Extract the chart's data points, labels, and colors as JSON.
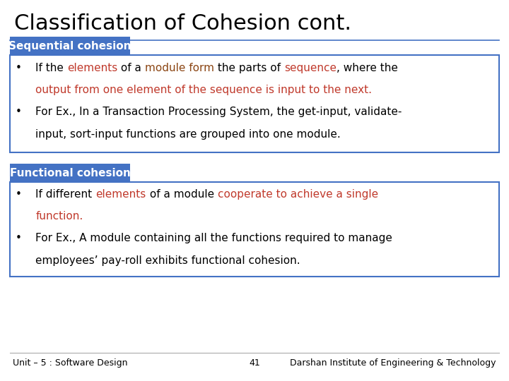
{
  "title": "Classification of Cohesion cont.",
  "title_fontsize": 22,
  "title_color": "#000000",
  "background_color": "#ffffff",
  "section1_label": "Sequential cohesion",
  "section1_label_bg": "#4472c4",
  "section1_label_fg": "#ffffff",
  "section1_box_border": "#4472c4",
  "section2_label": "Functional cohesion",
  "section2_label_bg": "#4472c4",
  "section2_label_fg": "#ffffff",
  "section2_box_border": "#4472c4",
  "red_color": "#c0392b",
  "brown_color": "#8b4513",
  "black_color": "#000000",
  "footer_left": "Unit – 5 : Software Design",
  "footer_center": "41",
  "footer_right": "Darshan Institute of Engineering & Technology",
  "footer_color": "#000000",
  "footer_fontsize": 9,
  "separator_color": "#4472c4",
  "text_fontsize": 11,
  "label_fontsize": 11
}
